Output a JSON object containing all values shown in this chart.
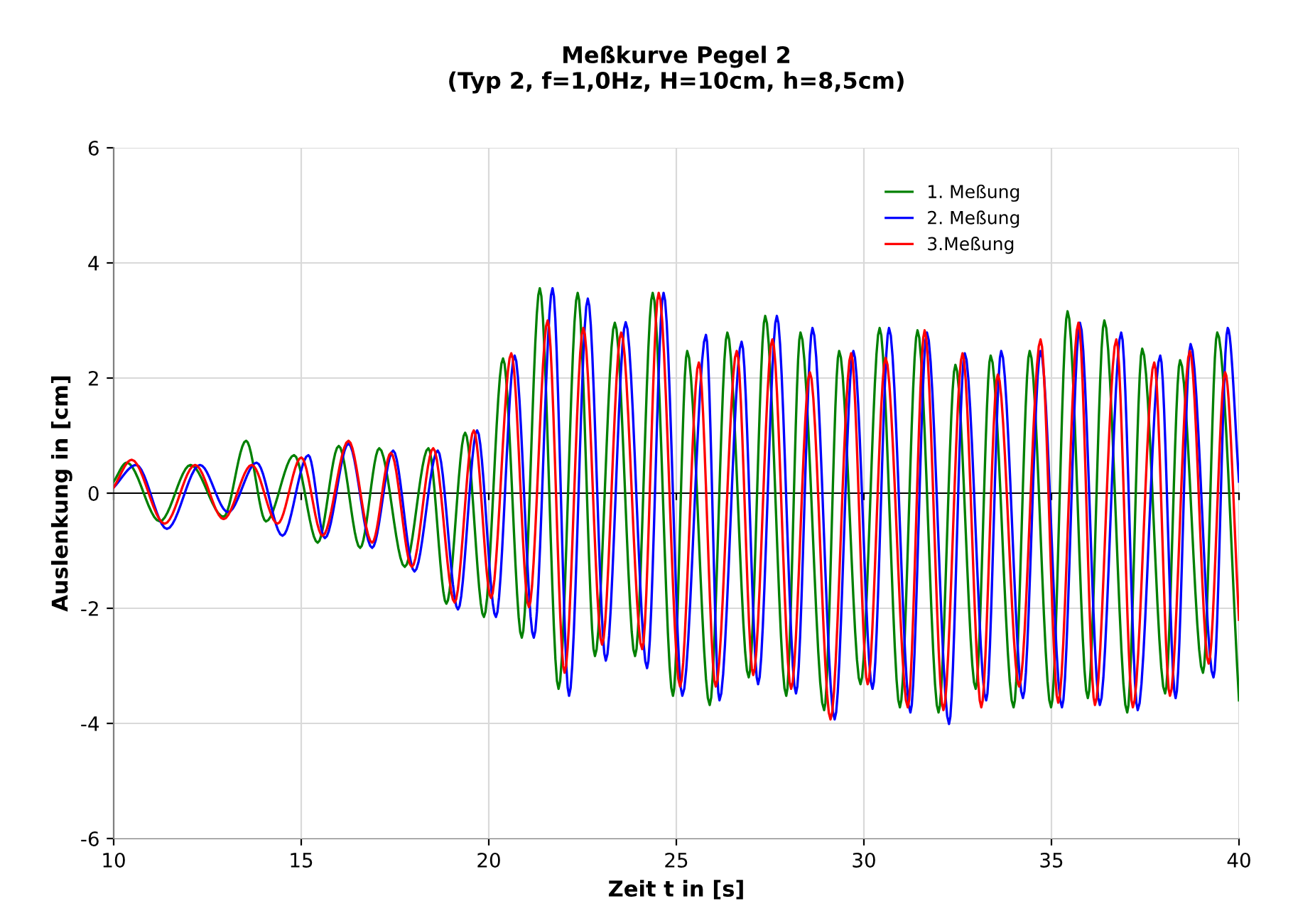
{
  "chart_data": {
    "type": "line",
    "title": "Meßkurve Pegel 2\n(Typ 2, f=1,0Hz, H=10cm, h=8,5cm)",
    "xlabel": "Zeit t in [s]",
    "ylabel": "Auslenkung in [cm]",
    "xlim": [
      10,
      40
    ],
    "xticks": [
      10,
      15,
      20,
      25,
      30,
      35,
      40
    ],
    "ylim": [
      -6,
      6
    ],
    "yticks": [
      -6,
      -4,
      -2,
      0,
      2,
      4,
      6
    ],
    "grid": true,
    "legend": "top right",
    "marker": "none",
    "line_style": "solid",
    "series": [
      {
        "name": "1. Meßung",
        "color": "#008000",
        "x": [
          10,
          10.35,
          11.23,
          12.05,
          12.93,
          13.53,
          14.06,
          14.81,
          15.44,
          16.0,
          16.57,
          17.08,
          17.76,
          18.39,
          18.87,
          19.37,
          19.87,
          20.38,
          20.88,
          21.36,
          21.86,
          22.37,
          22.83,
          23.36,
          23.9,
          24.37,
          24.91,
          25.29,
          25.89,
          26.36,
          26.93,
          27.37,
          27.93,
          28.31,
          28.94,
          29.34,
          29.91,
          30.42,
          30.96,
          31.43,
          31.99,
          32.44,
          32.98,
          33.38,
          33.99,
          34.42,
          34.99,
          35.43,
          35.97,
          36.41,
          37.02,
          37.42,
          38.03,
          38.43,
          39.04,
          39.42,
          40
        ],
        "values": [
          0.2,
          0.53,
          -0.49,
          0.49,
          -0.41,
          0.91,
          -0.49,
          0.66,
          -0.86,
          0.82,
          -0.95,
          0.78,
          -1.28,
          0.78,
          -1.92,
          1.05,
          -2.15,
          2.34,
          -2.51,
          3.56,
          -3.4,
          3.48,
          -2.83,
          2.96,
          -2.83,
          3.48,
          -3.52,
          2.47,
          -3.68,
          2.79,
          -3.2,
          3.08,
          -3.52,
          2.79,
          -3.77,
          2.47,
          -3.32,
          2.87,
          -3.72,
          2.83,
          -3.81,
          2.23,
          -3.4,
          2.39,
          -3.72,
          2.47,
          -3.72,
          3.16,
          -3.56,
          3.0,
          -3.81,
          2.51,
          -3.48,
          2.31,
          -3.12,
          2.79,
          -3.6
        ]
      },
      {
        "name": "2. Meßung",
        "color": "#0000ff",
        "x": [
          10,
          10.6,
          11.42,
          12.3,
          13.05,
          13.81,
          14.5,
          15.19,
          15.63,
          16.26,
          16.89,
          17.45,
          18.02,
          18.64,
          19.18,
          19.69,
          20.19,
          20.69,
          21.2,
          21.7,
          22.14,
          22.64,
          23.12,
          23.65,
          24.22,
          24.66,
          25.16,
          25.79,
          26.15,
          26.74,
          27.18,
          27.68,
          28.19,
          28.63,
          29.22,
          29.72,
          30.23,
          30.67,
          31.24,
          31.68,
          32.27,
          32.69,
          33.26,
          33.66,
          34.24,
          34.71,
          35.28,
          35.76,
          36.29,
          36.86,
          37.3,
          37.9,
          38.31,
          38.71,
          39.32,
          39.7,
          40
        ],
        "values": [
          0.1,
          0.49,
          -0.62,
          0.49,
          -0.33,
          0.53,
          -0.74,
          0.66,
          -0.78,
          0.86,
          -0.95,
          0.74,
          -1.36,
          0.74,
          -2.02,
          1.09,
          -2.15,
          2.39,
          -2.51,
          3.56,
          -3.52,
          3.38,
          -2.91,
          2.97,
          -3.04,
          3.48,
          -3.52,
          2.75,
          -3.6,
          2.63,
          -3.32,
          3.08,
          -3.48,
          2.87,
          -3.93,
          2.47,
          -3.4,
          2.87,
          -3.81,
          2.79,
          -4.01,
          2.43,
          -3.6,
          2.47,
          -3.56,
          2.47,
          -3.72,
          2.96,
          -3.68,
          2.79,
          -3.77,
          2.39,
          -3.56,
          2.59,
          -3.2,
          2.87,
          0.2
        ]
      },
      {
        "name": "3.Meßung",
        "color": "#ff0000",
        "x": [
          10,
          10.48,
          11.36,
          12.17,
          12.93,
          13.68,
          14.37,
          15.0,
          15.57,
          16.26,
          16.89,
          17.39,
          17.95,
          18.52,
          19.09,
          19.6,
          20.06,
          20.6,
          21.07,
          21.57,
          22.02,
          22.52,
          23.02,
          23.53,
          24.09,
          24.53,
          25.1,
          25.6,
          26.05,
          26.61,
          27.05,
          27.56,
          28.06,
          28.56,
          29.11,
          29.66,
          30.1,
          30.58,
          31.17,
          31.62,
          32.12,
          32.63,
          33.13,
          33.57,
          34.14,
          34.71,
          35.18,
          35.72,
          36.16,
          36.73,
          37.17,
          37.74,
          38.16,
          38.69,
          39.19,
          39.63,
          40
        ],
        "values": [
          0.1,
          0.58,
          -0.53,
          0.49,
          -0.45,
          0.49,
          -0.53,
          0.62,
          -0.74,
          0.91,
          -0.86,
          0.7,
          -1.28,
          0.78,
          -1.9,
          1.09,
          -1.82,
          2.43,
          -1.98,
          3.0,
          -3.12,
          2.87,
          -2.63,
          2.79,
          -2.71,
          3.48,
          -3.36,
          2.27,
          -3.36,
          2.47,
          -3.16,
          2.67,
          -3.4,
          2.1,
          -3.93,
          2.43,
          -3.32,
          2.35,
          -3.72,
          2.83,
          -3.77,
          2.43,
          -3.72,
          2.06,
          -3.36,
          2.67,
          -3.64,
          2.96,
          -3.68,
          2.67,
          -3.72,
          2.27,
          -3.52,
          2.47,
          -2.96,
          2.1,
          -2.2
        ]
      }
    ]
  }
}
